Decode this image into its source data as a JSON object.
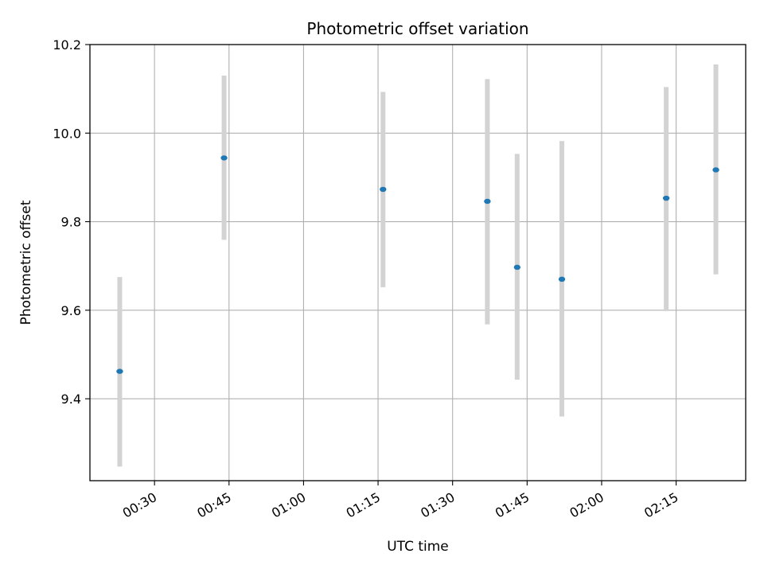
{
  "chart_data": {
    "type": "scatter",
    "title": "Photometric offset variation",
    "xlabel": "UTC time",
    "ylabel": "Photometric offset",
    "x_ticks": [
      "00:30",
      "00:45",
      "01:00",
      "01:15",
      "01:30",
      "01:45",
      "02:00",
      "02:15"
    ],
    "x_tick_minutes": [
      30,
      45,
      60,
      75,
      90,
      105,
      120,
      135
    ],
    "xlim": [
      "00:17",
      "02:29"
    ],
    "ylim": [
      9.215,
      10.2
    ],
    "y_ticks": [
      "9.4",
      "9.6",
      "9.8",
      "10.0",
      "10.2"
    ],
    "grid": true,
    "colors": {
      "point": "#1f77b4",
      "errorbar": "#d3d3d3",
      "grid": "#b0b0b0"
    },
    "series": [
      {
        "x": [
          "00:23",
          "00:44",
          "01:16",
          "01:37",
          "01:43",
          "01:52",
          "02:13",
          "02:23"
        ],
        "y": [
          9.462,
          9.944,
          9.873,
          9.846,
          9.697,
          9.67,
          9.853,
          9.917
        ],
        "err_low": [
          9.247,
          9.759,
          9.652,
          9.568,
          9.443,
          9.36,
          9.598,
          9.681
        ],
        "err_high": [
          9.675,
          10.13,
          10.093,
          10.122,
          9.953,
          9.982,
          10.104,
          10.155
        ]
      }
    ]
  }
}
